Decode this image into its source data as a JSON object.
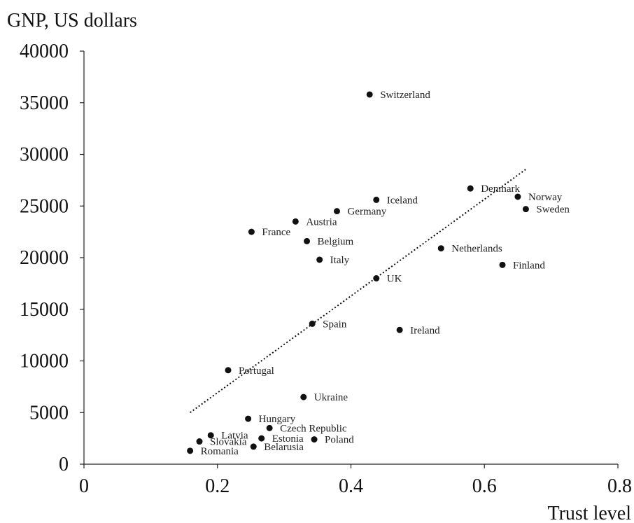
{
  "chart_data": {
    "type": "scatter",
    "title": "",
    "ylabel": "GNP, US dollars",
    "xlabel": "Trust level",
    "xlim": [
      0,
      0.8
    ],
    "ylim": [
      0,
      40000
    ],
    "x_ticks": [
      "0",
      "0.2",
      "0.4",
      "0.6",
      "0.8"
    ],
    "x_tick_values": [
      0,
      0.2,
      0.4,
      0.6,
      0.8
    ],
    "y_ticks": [
      "0",
      "5000",
      "10000",
      "15000",
      "20000",
      "25000",
      "30000",
      "35000",
      "40000"
    ],
    "y_tick_values": [
      0,
      5000,
      10000,
      15000,
      20000,
      25000,
      30000,
      35000,
      40000
    ],
    "grid": false,
    "trendline": {
      "style": "dotted",
      "x": [
        0.159,
        0.663
      ],
      "y": [
        5000,
        28600
      ]
    },
    "points": [
      {
        "label": "Switzerland",
        "x": 0.428,
        "y": 35800
      },
      {
        "label": "Denmark",
        "x": 0.579,
        "y": 26700
      },
      {
        "label": "Norway",
        "x": 0.65,
        "y": 25900
      },
      {
        "label": "Sweden",
        "x": 0.662,
        "y": 24700
      },
      {
        "label": "Iceland",
        "x": 0.438,
        "y": 25600
      },
      {
        "label": "Germany",
        "x": 0.379,
        "y": 24500
      },
      {
        "label": "Austria",
        "x": 0.317,
        "y": 23500
      },
      {
        "label": "France",
        "x": 0.251,
        "y": 22500
      },
      {
        "label": "Belgium",
        "x": 0.334,
        "y": 21600
      },
      {
        "label": "Netherlands",
        "x": 0.535,
        "y": 20900
      },
      {
        "label": "Italy",
        "x": 0.353,
        "y": 19800
      },
      {
        "label": "Finland",
        "x": 0.627,
        "y": 19300
      },
      {
        "label": "UK",
        "x": 0.438,
        "y": 18000
      },
      {
        "label": "Spain",
        "x": 0.342,
        "y": 13600
      },
      {
        "label": "Ireland",
        "x": 0.473,
        "y": 13000
      },
      {
        "label": "Portugal",
        "x": 0.216,
        "y": 9100
      },
      {
        "label": "Ukraine",
        "x": 0.329,
        "y": 6500
      },
      {
        "label": "Hungary",
        "x": 0.246,
        "y": 4400
      },
      {
        "label": "Czech Republic",
        "x": 0.278,
        "y": 3500
      },
      {
        "label": "Latvia",
        "x": 0.19,
        "y": 2800
      },
      {
        "label": "Estonia",
        "x": 0.266,
        "y": 2500
      },
      {
        "label": "Poland",
        "x": 0.345,
        "y": 2400
      },
      {
        "label": "Slovakia",
        "x": 0.173,
        "y": 2200
      },
      {
        "label": "Belarusia",
        "x": 0.254,
        "y": 1700
      },
      {
        "label": "Romania",
        "x": 0.159,
        "y": 1300
      }
    ]
  }
}
